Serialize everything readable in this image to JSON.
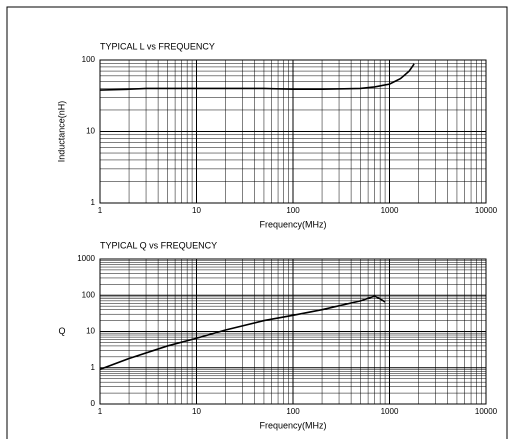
{
  "chart_data": [
    {
      "type": "line",
      "title": "TYPICAL L vs FREQUENCY",
      "xlabel": "Frequency(MHz)",
      "ylabel": "Inductance(nH)",
      "log_x": true,
      "log_y": true,
      "grid": true,
      "x": [
        1,
        2,
        3,
        5,
        10,
        20,
        50,
        100,
        200,
        500,
        700,
        1000,
        1300,
        1600,
        1800
      ],
      "series": [
        {
          "color": "#000000",
          "values": [
            38,
            39,
            40,
            40,
            40,
            40,
            40,
            39,
            39,
            40,
            42,
            46,
            55,
            70,
            88
          ]
        }
      ],
      "xlim": [
        1,
        10000
      ],
      "xticks": [
        1,
        10,
        100,
        1000,
        10000
      ],
      "ylim": [
        1,
        100
      ],
      "yticks": [
        1,
        10,
        100
      ]
    },
    {
      "type": "line",
      "title": "TYPICAL Q vs FREQUENCY",
      "xlabel": "Frequency(MHz)",
      "ylabel": "Q",
      "log_x": true,
      "log_y": true,
      "grid": true,
      "x": [
        1,
        2,
        5,
        10,
        20,
        50,
        100,
        200,
        500,
        700,
        800,
        900
      ],
      "series": [
        {
          "color": "#000000",
          "values": [
            0.9,
            1.8,
            4,
            6.5,
            11,
            20,
            28,
            40,
            70,
            95,
            80,
            65
          ]
        }
      ],
      "xlim": [
        1,
        10000
      ],
      "xticks": [
        1,
        10,
        100,
        1000,
        10000
      ],
      "ylim": [
        0.1,
        1000
      ],
      "yticks": [
        {
          "value": 0.1,
          "label": "0"
        },
        1,
        10,
        100,
        1000
      ]
    }
  ]
}
